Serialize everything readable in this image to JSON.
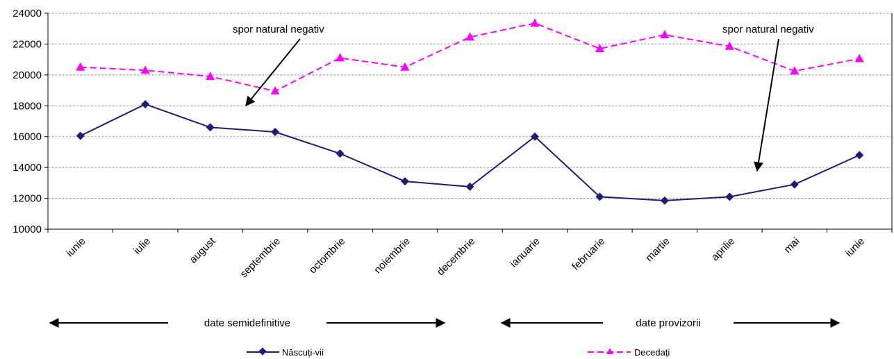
{
  "chart_data": {
    "type": "line",
    "categories": [
      "iunie",
      "iulie",
      "august",
      "septembrie",
      "octombrie",
      "noiembrie",
      "decembrie",
      "ianuarie",
      "februarie",
      "martie",
      "aprilie",
      "mai",
      "iunie"
    ],
    "series": [
      {
        "name": "Născuți-vii",
        "color": "#1c1c7a",
        "marker": "diamond",
        "line_style": "solid",
        "values": [
          16050,
          18100,
          16600,
          16300,
          14900,
          13100,
          12750,
          16000,
          12100,
          11850,
          12100,
          12900,
          14800
        ]
      },
      {
        "name": "Decedați",
        "color": "#ff00ff",
        "marker": "triangle",
        "line_style": "dashed",
        "values": [
          20500,
          20300,
          19900,
          18950,
          21100,
          20500,
          22450,
          23350,
          21700,
          22600,
          21850,
          20250,
          21050
        ]
      }
    ],
    "ylim": [
      10000,
      24000
    ],
    "yticks": [
      "10000",
      "12000",
      "14000",
      "16000",
      "18000",
      "20000",
      "22000",
      "24000"
    ],
    "grid": true,
    "legend_position": "bottom",
    "title": "",
    "xlabel": "",
    "ylabel": "",
    "annotations": [
      {
        "text": "spor natural negativ",
        "points_to_category_index": 3
      },
      {
        "text": "spor natural negativ",
        "points_to_category_index": 10
      }
    ],
    "period_labels": [
      {
        "text": "date semidefinitive",
        "from_index": 0,
        "to_index": 6
      },
      {
        "text": "date provizorii",
        "from_index": 7,
        "to_index": 12
      }
    ]
  }
}
